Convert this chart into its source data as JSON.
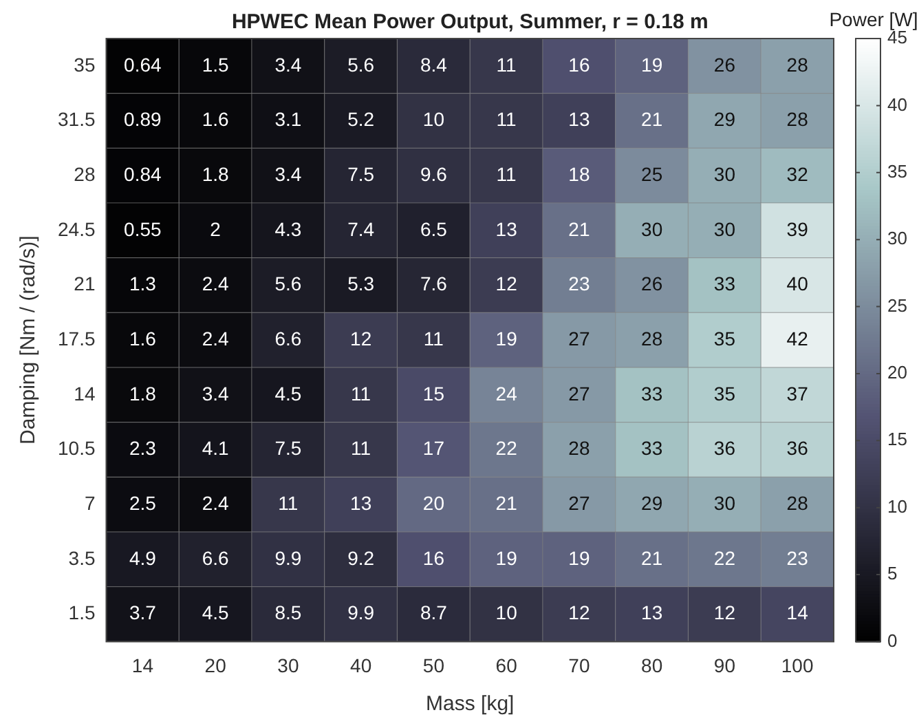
{
  "chart_data": {
    "type": "heatmap",
    "title": "HPWEC Mean Power Output, Summer, r = 0.18 m",
    "xlabel": "Mass [kg]",
    "ylabel": "Damping [Nm / (rad/s)]",
    "clabel": "Power [W]",
    "categories": [
      "14",
      "20",
      "30",
      "40",
      "50",
      "60",
      "70",
      "80",
      "90",
      "100"
    ],
    "y_categories": [
      "35",
      "31.5",
      "28",
      "24.5",
      "21",
      "17.5",
      "14",
      "10.5",
      "7",
      "3.5",
      "1.5"
    ],
    "cells": [
      [
        0.64,
        1.5,
        3.4,
        5.6,
        8.4,
        11,
        16,
        19,
        26,
        28
      ],
      [
        0.89,
        1.6,
        3.1,
        5.2,
        10,
        11,
        13,
        21,
        29,
        28
      ],
      [
        0.84,
        1.8,
        3.4,
        7.5,
        9.6,
        11,
        18,
        25,
        30,
        32
      ],
      [
        0.55,
        2,
        4.3,
        7.4,
        6.5,
        13,
        21,
        30,
        30,
        39
      ],
      [
        1.3,
        2.4,
        5.6,
        5.3,
        7.6,
        12,
        23,
        26,
        33,
        40
      ],
      [
        1.6,
        2.4,
        6.6,
        12,
        11,
        19,
        27,
        28,
        35,
        42
      ],
      [
        1.8,
        3.4,
        4.5,
        11,
        15,
        24,
        27,
        33,
        35,
        37
      ],
      [
        2.3,
        4.1,
        7.5,
        11,
        17,
        22,
        28,
        33,
        36,
        36
      ],
      [
        2.5,
        2.4,
        11,
        13,
        20,
        21,
        27,
        29,
        30,
        28
      ],
      [
        4.9,
        6.6,
        9.9,
        9.2,
        16,
        19,
        19,
        21,
        22,
        23
      ],
      [
        3.7,
        4.5,
        8.5,
        9.9,
        8.7,
        10,
        12,
        13,
        12,
        14
      ]
    ],
    "clim": [
      0,
      45
    ],
    "cticks": [
      0,
      5,
      10,
      15,
      20,
      25,
      30,
      35,
      40,
      45
    ],
    "data_labels": true
  }
}
